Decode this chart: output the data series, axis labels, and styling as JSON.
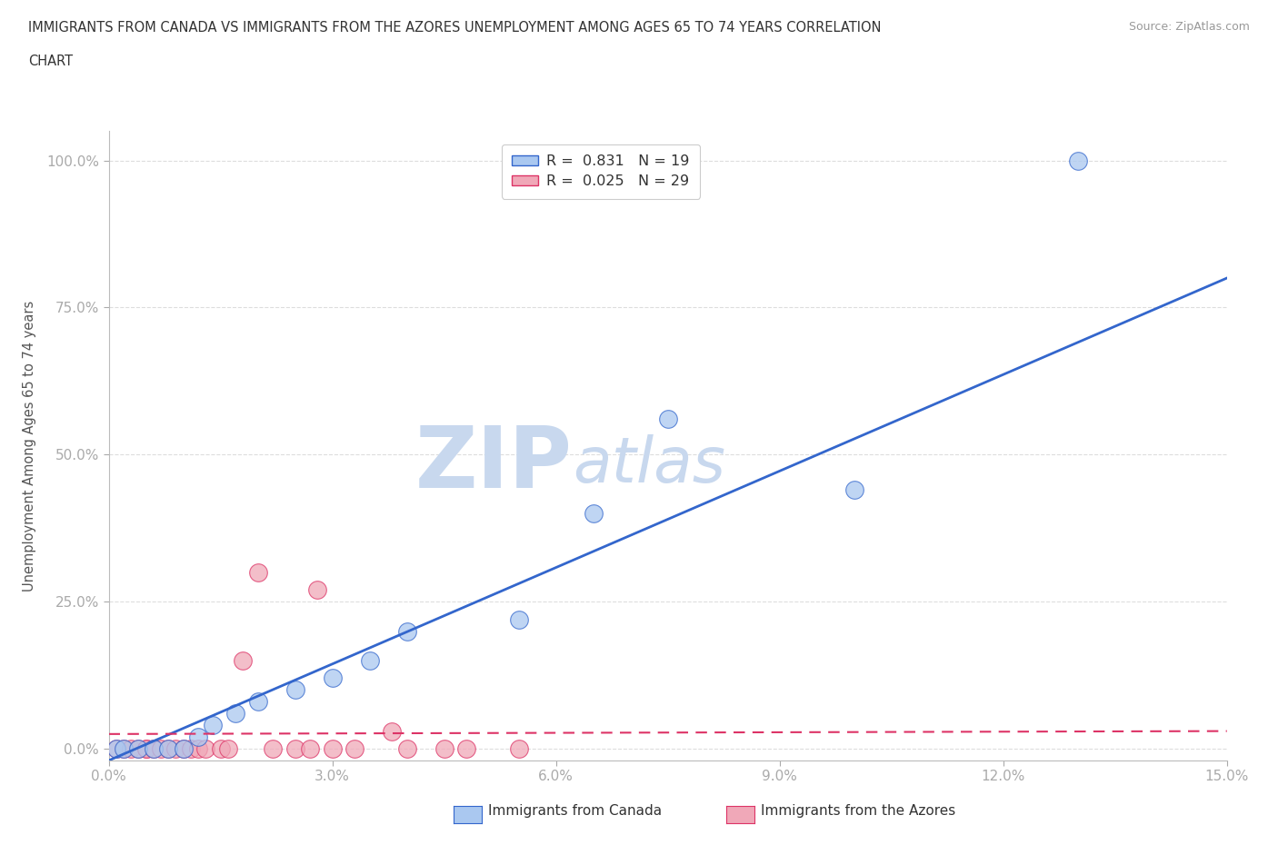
{
  "title_line1": "IMMIGRANTS FROM CANADA VS IMMIGRANTS FROM THE AZORES UNEMPLOYMENT AMONG AGES 65 TO 74 YEARS CORRELATION",
  "title_line2": "CHART",
  "source": "Source: ZipAtlas.com",
  "ylabel": "Unemployment Among Ages 65 to 74 years",
  "xlim": [
    0.0,
    0.15
  ],
  "ylim": [
    -0.02,
    1.05
  ],
  "xticks": [
    0.0,
    0.03,
    0.06,
    0.09,
    0.12,
    0.15
  ],
  "xticklabels": [
    "0.0%",
    "3.0%",
    "6.0%",
    "9.0%",
    "12.0%",
    "15.0%"
  ],
  "yticks": [
    0.0,
    0.25,
    0.5,
    0.75,
    1.0
  ],
  "yticklabels": [
    "0.0%",
    "25.0%",
    "50.0%",
    "75.0%",
    "100.0%"
  ],
  "canada_R": 0.831,
  "canada_N": 19,
  "azores_R": 0.025,
  "azores_N": 29,
  "canada_color": "#aac8f0",
  "azores_color": "#f0a8b8",
  "canada_line_color": "#3366cc",
  "azores_line_color": "#dd3366",
  "watermark_zip": "ZIP",
  "watermark_atlas": "atlas",
  "watermark_color": "#c8d8ee",
  "background_color": "#ffffff",
  "grid_color": "#dddddd",
  "title_color": "#333333",
  "canada_x": [
    0.001,
    0.002,
    0.004,
    0.006,
    0.008,
    0.01,
    0.012,
    0.014,
    0.017,
    0.02,
    0.025,
    0.03,
    0.035,
    0.04,
    0.055,
    0.065,
    0.075,
    0.1,
    0.13
  ],
  "canada_y": [
    0.0,
    0.0,
    0.0,
    0.0,
    0.0,
    0.0,
    0.02,
    0.04,
    0.06,
    0.08,
    0.1,
    0.12,
    0.15,
    0.2,
    0.22,
    0.4,
    0.56,
    0.44,
    1.0
  ],
  "azores_x": [
    0.001,
    0.002,
    0.003,
    0.004,
    0.005,
    0.005,
    0.006,
    0.007,
    0.008,
    0.009,
    0.01,
    0.011,
    0.012,
    0.013,
    0.015,
    0.016,
    0.018,
    0.02,
    0.022,
    0.025,
    0.027,
    0.028,
    0.03,
    0.033,
    0.038,
    0.04,
    0.045,
    0.048,
    0.055
  ],
  "azores_y": [
    0.0,
    0.0,
    0.0,
    0.0,
    0.0,
    0.0,
    0.0,
    0.0,
    0.0,
    0.0,
    0.0,
    0.0,
    0.0,
    0.0,
    0.0,
    0.0,
    0.15,
    0.3,
    0.0,
    0.0,
    0.0,
    0.27,
    0.0,
    0.0,
    0.03,
    0.0,
    0.0,
    0.0,
    0.0
  ],
  "canada_trend_x0": 0.0,
  "canada_trend_y0": -0.02,
  "canada_trend_x1": 0.15,
  "canada_trend_y1": 0.8,
  "azores_trend_x0": 0.0,
  "azores_trend_y0": 0.025,
  "azores_trend_x1": 0.15,
  "azores_trend_y1": 0.03
}
